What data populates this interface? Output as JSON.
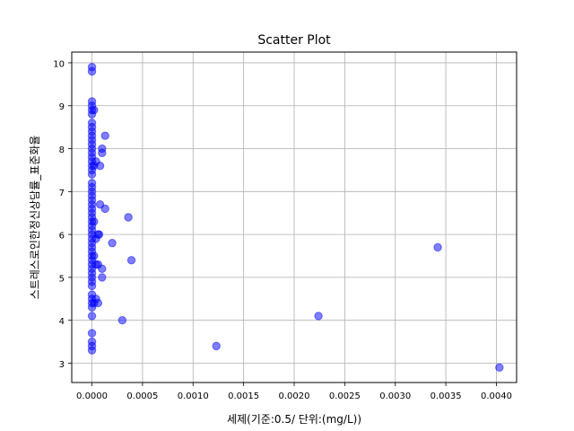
{
  "chart_data": {
    "type": "scatter",
    "title": "Scatter Plot",
    "xlabel": "세제(기준:0.5/ 단위:(mg/L))",
    "ylabel": "스트레스로인한정신상담률_표준화율",
    "xlim": [
      -0.0002,
      0.0042
    ],
    "ylim": [
      2.55,
      10.25
    ],
    "x_ticks": [
      0.0,
      0.0005,
      0.001,
      0.0015,
      0.002,
      0.0025,
      0.003,
      0.0035,
      0.004
    ],
    "x_tick_labels": [
      "0.0000",
      "0.0005",
      "0.0010",
      "0.0015",
      "0.0020",
      "0.0025",
      "0.0030",
      "0.0035",
      "0.0040"
    ],
    "y_ticks": [
      3,
      4,
      5,
      6,
      7,
      8,
      9,
      10
    ],
    "y_tick_labels": [
      "3",
      "4",
      "5",
      "6",
      "7",
      "8",
      "9",
      "10"
    ],
    "grid": true,
    "point_color": "#0000ff",
    "point_alpha": 0.5,
    "points": [
      [
        0,
        9.9
      ],
      [
        0,
        9.8
      ],
      [
        0,
        9.1
      ],
      [
        0,
        9.0
      ],
      [
        0,
        8.9
      ],
      [
        0,
        8.8
      ],
      [
        0,
        8.6
      ],
      [
        0,
        8.5
      ],
      [
        0,
        8.4
      ],
      [
        0,
        8.3
      ],
      [
        0,
        8.2
      ],
      [
        0,
        8.1
      ],
      [
        0,
        8.0
      ],
      [
        0,
        7.9
      ],
      [
        0,
        7.8
      ],
      [
        0,
        7.7
      ],
      [
        0,
        7.6
      ],
      [
        0,
        7.5
      ],
      [
        0,
        7.4
      ],
      [
        0,
        7.2
      ],
      [
        0,
        7.1
      ],
      [
        0,
        7.0
      ],
      [
        0,
        6.9
      ],
      [
        0,
        6.8
      ],
      [
        0,
        6.7
      ],
      [
        0,
        6.6
      ],
      [
        0,
        6.5
      ],
      [
        0,
        6.4
      ],
      [
        0,
        6.3
      ],
      [
        0,
        6.2
      ],
      [
        0,
        6.1
      ],
      [
        0,
        6.0
      ],
      [
        0,
        5.9
      ],
      [
        0,
        5.8
      ],
      [
        0,
        5.7
      ],
      [
        0,
        5.6
      ],
      [
        0,
        5.5
      ],
      [
        0,
        5.4
      ],
      [
        0,
        5.3
      ],
      [
        0,
        5.2
      ],
      [
        0,
        5.1
      ],
      [
        0,
        5.0
      ],
      [
        0,
        4.9
      ],
      [
        0,
        4.8
      ],
      [
        0,
        4.6
      ],
      [
        0,
        4.5
      ],
      [
        0,
        4.4
      ],
      [
        0,
        4.3
      ],
      [
        0,
        4.1
      ],
      [
        0,
        3.7
      ],
      [
        0,
        3.5
      ],
      [
        0,
        3.4
      ],
      [
        0,
        3.3
      ],
      [
        2e-05,
        8.9
      ],
      [
        2e-05,
        7.6
      ],
      [
        2e-05,
        6.3
      ],
      [
        2e-05,
        5.5
      ],
      [
        2e-05,
        4.4
      ],
      [
        4e-05,
        7.7
      ],
      [
        4e-05,
        5.9
      ],
      [
        4e-05,
        5.3
      ],
      [
        4e-05,
        4.5
      ],
      [
        6e-05,
        6.0
      ],
      [
        6e-05,
        5.3
      ],
      [
        6e-05,
        4.4
      ],
      [
        7e-05,
        6.0
      ],
      [
        8e-05,
        7.6
      ],
      [
        8e-05,
        6.7
      ],
      [
        0.0001,
        8.0
      ],
      [
        0.0001,
        7.9
      ],
      [
        0.0001,
        5.2
      ],
      [
        0.0001,
        5.0
      ],
      [
        0.00013,
        8.3
      ],
      [
        0.00013,
        6.6
      ],
      [
        0.0002,
        5.8
      ],
      [
        0.0003,
        4.0
      ],
      [
        0.00036,
        6.4
      ],
      [
        0.00039,
        5.4
      ],
      [
        0.00123,
        3.4
      ],
      [
        0.00224,
        4.1
      ],
      [
        0.00342,
        5.7
      ],
      [
        0.00403,
        2.9
      ]
    ]
  }
}
